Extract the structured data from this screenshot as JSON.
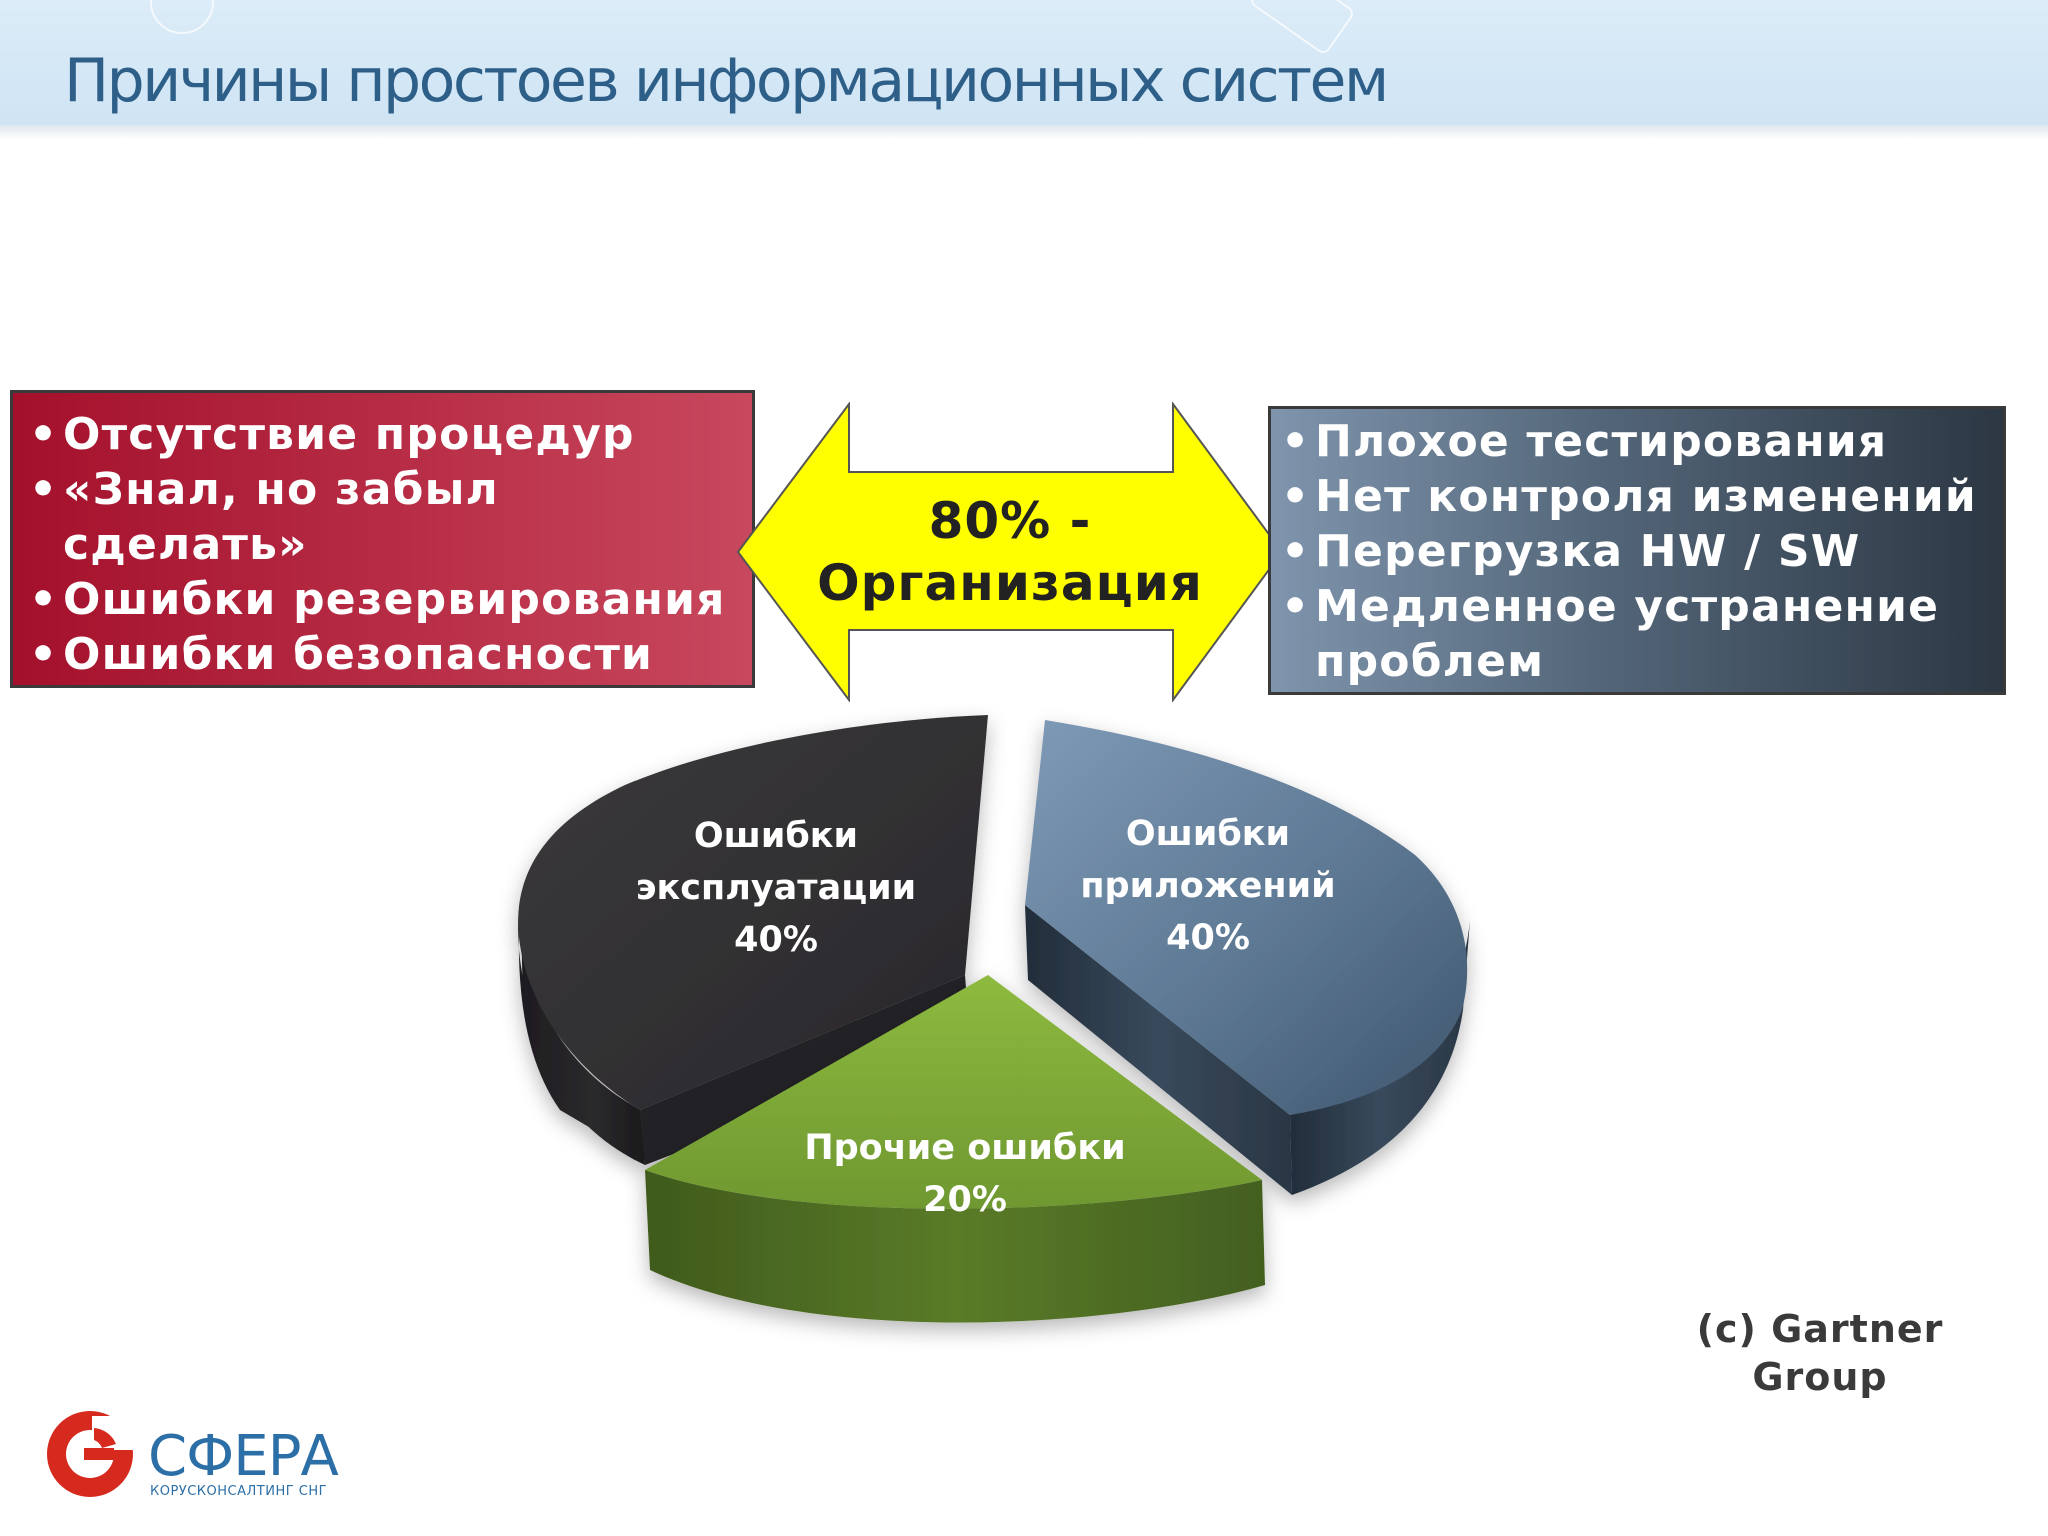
{
  "title": "Причины простоев информационных систем",
  "left_box": {
    "items": [
      "Отсутствие процедур",
      "«Знал, но забыл",
      "сделать»",
      "Ошибки резервирования",
      "Ошибки безопасности"
    ],
    "color": "#b82e46"
  },
  "center_arrow": {
    "line1": "80% -",
    "line2": "Организация",
    "color": "#ffff00"
  },
  "right_box": {
    "items": [
      "Плохое  тестирования",
      "Нет контроля изменений",
      "Перегрузка HW / SW",
      "Медленное устранение",
      "проблем"
    ],
    "color": "#536679"
  },
  "chart_data": {
    "type": "pie",
    "style": "3d-exploded",
    "slices": [
      {
        "label_line1": "Ошибки",
        "label_line2": "эксплуатации",
        "value_label": "40%",
        "value": 40,
        "color": "#333235"
      },
      {
        "label_line1": "Ошибки",
        "label_line2": "приложений",
        "value_label": "40%",
        "value": 40,
        "color": "#4f6882"
      },
      {
        "label_line1": "Прочие ошибки",
        "value_label": "20%",
        "value": 20,
        "color": "#7ea23b"
      }
    ]
  },
  "credit": {
    "line1": "(c) Gartner",
    "line2": "Group"
  },
  "logo": {
    "name": "СФЕРА",
    "subtitle": "КОРУСКОНСАЛТИНГ СНГ",
    "icon": "sfera-logo-icon"
  }
}
